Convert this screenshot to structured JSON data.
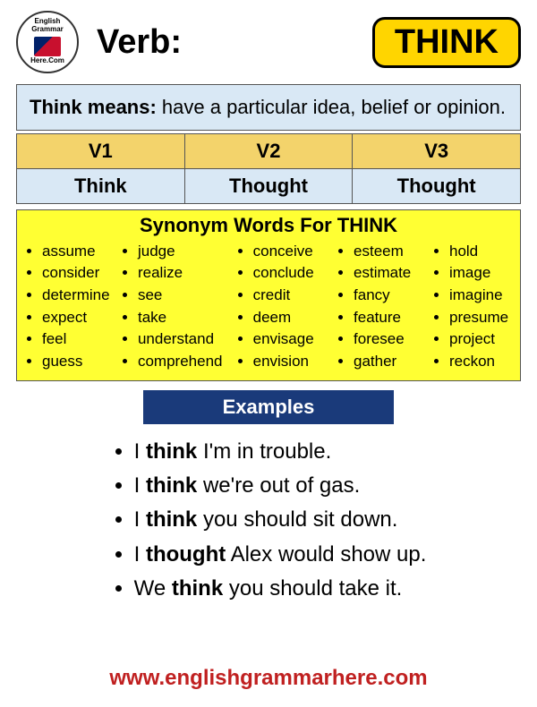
{
  "header": {
    "logo_top": "English Grammar",
    "logo_bottom": "Here.Com",
    "verb_label": "Verb:",
    "verb_word": "THINK"
  },
  "definition": {
    "prefix": "Think means:",
    "text": " have a particular idea, belief or opinion."
  },
  "forms": {
    "headers": [
      "V1",
      "V2",
      "V3"
    ],
    "values": [
      "Think",
      "Thought",
      "Thought"
    ]
  },
  "synonyms": {
    "title": "Synonym Words For THINK",
    "cols": [
      [
        "assume",
        "consider",
        "determine",
        "expect",
        "feel",
        "guess"
      ],
      [
        "judge",
        "realize",
        "see",
        "take",
        "understand",
        "comprehend"
      ],
      [
        "conceive",
        "conclude",
        "credit",
        "deem",
        "envisage",
        "envision"
      ],
      [
        "esteem",
        "estimate",
        "fancy",
        "feature",
        "foresee",
        "gather"
      ],
      [
        "hold",
        "image",
        "imagine",
        "presume",
        "project",
        "reckon"
      ]
    ]
  },
  "examples": {
    "title": "Examples",
    "items": [
      {
        "pre": "I ",
        "bold": "think",
        "post": " I'm in trouble."
      },
      {
        "pre": "I ",
        "bold": "think",
        "post": " we're out of gas."
      },
      {
        "pre": "I ",
        "bold": "think",
        "post": " you should sit down."
      },
      {
        "pre": "I ",
        "bold": "thought",
        "post": " Alex would show up."
      },
      {
        "pre": "We ",
        "bold": "think",
        "post": " you should take it."
      }
    ]
  },
  "footer": {
    "url": "www.englishgrammarhere.com"
  },
  "colors": {
    "badge_bg": "#ffd500",
    "def_bg": "#d9e8f5",
    "form_header_bg": "#f3d36b",
    "syn_bg": "#ffff33",
    "examples_header_bg": "#1a3a7a",
    "footer_color": "#c02020"
  }
}
